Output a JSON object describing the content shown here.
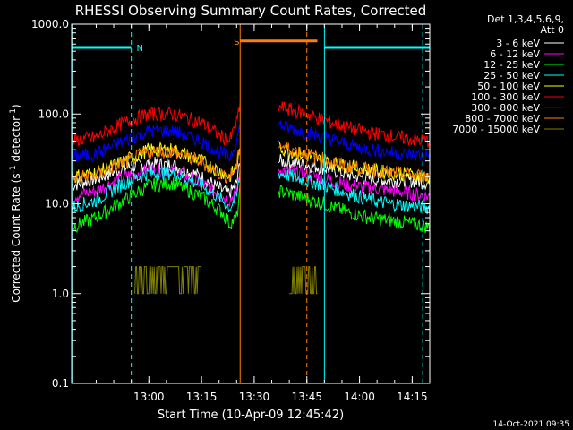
{
  "chart_data": {
    "type": "line",
    "title": "RHESSI Observing Summary Count Rates, Corrected",
    "xlabel": "Start Time (10-Apr-09 12:45:42)",
    "ylabel_main": "Corrected Count Rate (s",
    "ylabel_sup1": "-1",
    "ylabel_mid": " detector",
    "ylabel_sup2": "-1",
    "ylabel_end": ")",
    "yscale": "log",
    "ylim": [
      0.1,
      1000
    ],
    "xlim_min": [
      -7,
      95
    ],
    "x_ticks_min": [
      15,
      30,
      45,
      60,
      75,
      90
    ],
    "x_tick_labels": [
      "13:00",
      "13:15",
      "13:30",
      "13:45",
      "14:00",
      "14:15"
    ],
    "y_ticks": [
      0.1,
      1,
      10,
      100,
      1000
    ],
    "y_tick_labels": [
      "0.1",
      "1.0",
      "10.0",
      "100.0",
      "1000.0"
    ],
    "legend_header": [
      "Det 1,3,4,5,6,9,",
      "Att 0"
    ],
    "legend_position": "top-right outside",
    "series": [
      {
        "name": "3 - 6 keV",
        "color": "#ffffff",
        "pts": [
          [
            -7,
            16
          ],
          [
            0,
            19
          ],
          [
            8,
            25
          ],
          [
            15,
            28
          ],
          [
            22,
            27
          ],
          [
            30,
            20
          ],
          [
            36,
            14
          ],
          [
            38,
            13
          ],
          [
            40,
            17
          ],
          [
            41,
            30
          ],
          [
            52,
            30
          ],
          [
            58,
            28
          ],
          [
            65,
            25
          ],
          [
            72,
            21
          ],
          [
            78,
            19
          ],
          [
            84,
            18
          ],
          [
            90,
            18
          ],
          [
            95,
            17
          ]
        ]
      },
      {
        "name": "6 - 12 keV",
        "color": "#ff00ff",
        "pts": [
          [
            -7,
            12
          ],
          [
            0,
            14
          ],
          [
            8,
            20
          ],
          [
            15,
            24
          ],
          [
            22,
            23
          ],
          [
            30,
            17
          ],
          [
            36,
            12
          ],
          [
            38,
            11
          ],
          [
            40,
            14
          ],
          [
            41,
            24
          ],
          [
            52,
            24
          ],
          [
            58,
            22
          ],
          [
            65,
            19
          ],
          [
            72,
            16
          ],
          [
            78,
            15
          ],
          [
            84,
            14
          ],
          [
            90,
            13
          ],
          [
            95,
            12
          ]
        ]
      },
      {
        "name": "12 - 25 keV",
        "color": "#00ff00",
        "pts": [
          [
            -7,
            5.5
          ],
          [
            0,
            7
          ],
          [
            8,
            11
          ],
          [
            15,
            16
          ],
          [
            22,
            17
          ],
          [
            30,
            12
          ],
          [
            36,
            8
          ],
          [
            38,
            6
          ],
          [
            40,
            7
          ],
          [
            41,
            14
          ],
          [
            52,
            14
          ],
          [
            58,
            12
          ],
          [
            65,
            10
          ],
          [
            72,
            8
          ],
          [
            78,
            7
          ],
          [
            84,
            6.5
          ],
          [
            90,
            6
          ],
          [
            95,
            5.5
          ]
        ]
      },
      {
        "name": "25 - 50 keV",
        "color": "#00ffff",
        "pts": [
          [
            -7,
            9
          ],
          [
            0,
            11
          ],
          [
            8,
            17
          ],
          [
            15,
            22
          ],
          [
            22,
            22
          ],
          [
            30,
            16
          ],
          [
            36,
            11
          ],
          [
            38,
            9
          ],
          [
            40,
            12
          ],
          [
            41,
            22
          ],
          [
            52,
            22
          ],
          [
            58,
            19
          ],
          [
            65,
            16
          ],
          [
            72,
            13
          ],
          [
            78,
            11
          ],
          [
            84,
            10
          ],
          [
            90,
            9.5
          ],
          [
            95,
            9
          ]
        ]
      },
      {
        "name": "50 - 100 keV",
        "color": "#ffff00",
        "pts": [
          [
            -7,
            20
          ],
          [
            0,
            22
          ],
          [
            8,
            30
          ],
          [
            15,
            40
          ],
          [
            22,
            40
          ],
          [
            30,
            30
          ],
          [
            36,
            22
          ],
          [
            38,
            20
          ],
          [
            40,
            26
          ],
          [
            41,
            42
          ],
          [
            52,
            42
          ],
          [
            58,
            36
          ],
          [
            65,
            30
          ],
          [
            72,
            26
          ],
          [
            78,
            24
          ],
          [
            84,
            22
          ],
          [
            90,
            21
          ],
          [
            95,
            20
          ]
        ]
      },
      {
        "name": "100 - 300 keV",
        "color": "#ff0000",
        "pts": [
          [
            -7,
            50
          ],
          [
            0,
            55
          ],
          [
            8,
            80
          ],
          [
            15,
            100
          ],
          [
            22,
            100
          ],
          [
            30,
            80
          ],
          [
            36,
            55
          ],
          [
            38,
            50
          ],
          [
            40,
            80
          ],
          [
            41,
            120
          ],
          [
            52,
            120
          ],
          [
            58,
            105
          ],
          [
            65,
            85
          ],
          [
            72,
            70
          ],
          [
            78,
            62
          ],
          [
            84,
            57
          ],
          [
            90,
            52
          ],
          [
            95,
            50
          ]
        ]
      },
      {
        "name": "300 - 800 keV",
        "color": "#0000ff",
        "pts": [
          [
            -7,
            33
          ],
          [
            0,
            36
          ],
          [
            8,
            50
          ],
          [
            15,
            65
          ],
          [
            22,
            65
          ],
          [
            30,
            50
          ],
          [
            36,
            36
          ],
          [
            38,
            33
          ],
          [
            40,
            50
          ],
          [
            41,
            75
          ],
          [
            52,
            75
          ],
          [
            58,
            65
          ],
          [
            65,
            55
          ],
          [
            72,
            45
          ],
          [
            78,
            40
          ],
          [
            84,
            37
          ],
          [
            90,
            35
          ],
          [
            95,
            34
          ]
        ]
      },
      {
        "name": "800 - 7000 keV",
        "color": "#ff8000",
        "pts": [
          [
            -7,
            19
          ],
          [
            0,
            21
          ],
          [
            8,
            29
          ],
          [
            15,
            38
          ],
          [
            22,
            38
          ],
          [
            30,
            29
          ],
          [
            36,
            21
          ],
          [
            38,
            20
          ],
          [
            40,
            26
          ],
          [
            41,
            45
          ],
          [
            52,
            45
          ],
          [
            58,
            38
          ],
          [
            65,
            31
          ],
          [
            72,
            26
          ],
          [
            78,
            24
          ],
          [
            84,
            22
          ],
          [
            90,
            21
          ],
          [
            95,
            20
          ]
        ]
      },
      {
        "name": "7000 - 15000 keV",
        "color": "#808000",
        "pts": [
          [
            11,
            1
          ],
          [
            12,
            2
          ],
          [
            15,
            2
          ],
          [
            22,
            2
          ],
          [
            25,
            1.5
          ],
          [
            28,
            1
          ],
          [
            30,
            1
          ]
        ]
      }
    ],
    "markers": [
      {
        "label": "N",
        "color": "#00ffff"
      },
      {
        "label": "S",
        "color": "#ff8000"
      }
    ],
    "timestamp": "14-Oct-2021 09:35"
  }
}
